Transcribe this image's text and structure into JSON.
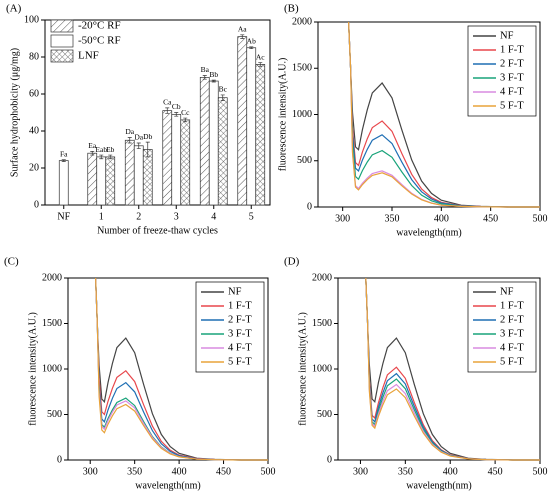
{
  "chart_data": [
    {
      "type": "bar",
      "label": "(A)",
      "ylabel": "Surface hydrophobicity (μg/mg)",
      "xlabel": "Number of freeze-thaw cycles",
      "categories": [
        "NF",
        "1",
        "2",
        "3",
        "4",
        "5"
      ],
      "ylim": [
        0,
        100
      ],
      "yticks": [
        0,
        20,
        40,
        60,
        80,
        100
      ],
      "legend": "top-left",
      "series": [
        {
          "name": "-20°C RF",
          "pattern": "hatch",
          "values": [
            null,
            28,
            35,
            51,
            69,
            91
          ],
          "errors": [
            null,
            1,
            1.5,
            1.5,
            1,
            1
          ],
          "labels": [
            null,
            "Ea",
            "Da",
            "Ca",
            "Ba",
            "Aa"
          ]
        },
        {
          "name": "-50°C RF",
          "pattern": "none",
          "values": [
            24,
            26,
            32,
            49,
            67,
            85
          ],
          "errors": [
            0.5,
            1,
            1.5,
            1,
            0.5,
            0.5
          ],
          "labels": [
            "Fa",
            "Eab",
            "Da",
            "Cb",
            "Bb",
            "Ab"
          ]
        },
        {
          "name": "LNF",
          "pattern": "crosshatch",
          "values": [
            null,
            26,
            30,
            46,
            58,
            76
          ],
          "errors": [
            null,
            1,
            4,
            1,
            1.5,
            1
          ],
          "labels": [
            null,
            "Eb",
            "Db",
            "Cc",
            "Bc",
            "Ac"
          ]
        }
      ]
    },
    {
      "type": "line",
      "label": "(B)",
      "ylabel": "fluorescence intensity(A.U.)",
      "xlabel": "wavelength(nm)",
      "xlim": [
        275,
        500
      ],
      "xticks": [
        300,
        350,
        400,
        450,
        500
      ],
      "ylim": [
        0,
        2000
      ],
      "yticks": [
        0,
        500,
        1000,
        1500,
        2000
      ],
      "legend": "top-right",
      "x": [
        306,
        308,
        310,
        313,
        316,
        320,
        325,
        330,
        340,
        350,
        360,
        370,
        380,
        390,
        400,
        420,
        440,
        470,
        500
      ],
      "series": [
        {
          "name": "NF",
          "color": "#444444",
          "values": [
            2000,
            1500,
            1020,
            650,
            620,
            836,
            1052,
            1232,
            1340,
            1179,
            831,
            509,
            281,
            147,
            74,
            20,
            7,
            0,
            0
          ]
        },
        {
          "name": "1 F-T",
          "color": "#e8474c",
          "values": [
            2000,
            1500,
            850,
            480,
            450,
            594,
            738,
            858,
            930,
            818,
            577,
            353,
            195,
            102,
            51,
            14,
            5,
            0,
            0
          ]
        },
        {
          "name": "2 F-T",
          "color": "#1f6fb4",
          "values": [
            2000,
            1500,
            790,
            420,
            390,
            507,
            624,
            722,
            780,
            686,
            484,
            296,
            164,
            86,
            43,
            12,
            4,
            0,
            0
          ]
        },
        {
          "name": "3 F-T",
          "color": "#19a37a",
          "values": [
            2000,
            1500,
            700,
            330,
            300,
            393,
            486,
            564,
            610,
            537,
            378,
            232,
            128,
            67,
            34,
            9,
            3,
            0,
            0
          ]
        },
        {
          "name": "4 F-T",
          "color": "#d98be0",
          "values": [
            2000,
            1500,
            600,
            230,
            200,
            257,
            314,
            362,
            390,
            343,
            242,
            148,
            82,
            43,
            21,
            6,
            2,
            0,
            0
          ]
        },
        {
          "name": "5 F-T",
          "color": "#e8a33a",
          "values": [
            2000,
            1500,
            585,
            215,
            185,
            241,
            296,
            342,
            370,
            326,
            229,
            141,
            78,
            41,
            20,
            6,
            2,
            0,
            0
          ]
        }
      ]
    },
    {
      "type": "line",
      "label": "(C)",
      "ylabel": "fluorescence intensity(A.U.)",
      "xlabel": "wavelength(nm)",
      "xlim": [
        275,
        500
      ],
      "xticks": [
        300,
        350,
        400,
        450,
        500
      ],
      "ylim": [
        0,
        2000
      ],
      "yticks": [
        0,
        500,
        1000,
        1500,
        2000
      ],
      "legend": "top-right",
      "x": [
        306,
        308,
        310,
        313,
        316,
        320,
        325,
        330,
        340,
        350,
        360,
        370,
        380,
        390,
        400,
        420,
        440,
        470,
        500
      ],
      "series": [
        {
          "name": "NF",
          "color": "#444444",
          "values": [
            2000,
            1500,
            1040,
            670,
            640,
            850,
            1060,
            1235,
            1340,
            1179,
            831,
            509,
            281,
            147,
            74,
            20,
            7,
            0,
            0
          ]
        },
        {
          "name": "1 F-T",
          "color": "#e8474c",
          "values": [
            2000,
            1500,
            900,
            530,
            500,
            644,
            788,
            908,
            980,
            862,
            608,
            372,
            206,
            108,
            54,
            15,
            5,
            0,
            0
          ]
        },
        {
          "name": "2 F-T",
          "color": "#1f6fb4",
          "values": [
            2000,
            1500,
            820,
            450,
            420,
            549,
            678,
            786,
            850,
            748,
            527,
            323,
            179,
            94,
            47,
            13,
            4,
            0,
            0
          ]
        },
        {
          "name": "3 F-T",
          "color": "#19a37a",
          "values": [
            2000,
            1500,
            760,
            390,
            360,
            456,
            552,
            632,
            680,
            598,
            422,
            258,
            143,
            75,
            37,
            10,
            3,
            0,
            0
          ]
        },
        {
          "name": "4 F-T",
          "color": "#d98be0",
          "values": [
            2000,
            1500,
            740,
            370,
            340,
            433,
            526,
            604,
            650,
            572,
            403,
            247,
            137,
            72,
            36,
            10,
            3,
            0,
            0
          ]
        },
        {
          "name": "5 F-T",
          "color": "#e8a33a",
          "values": [
            2000,
            1500,
            700,
            330,
            300,
            393,
            486,
            564,
            610,
            537,
            378,
            232,
            128,
            67,
            34,
            9,
            3,
            0,
            0
          ]
        }
      ]
    },
    {
      "type": "line",
      "label": "(D)",
      "ylabel": "fluorescence intensity(A.U.)",
      "xlabel": "wavelength(nm)",
      "xlim": [
        275,
        500
      ],
      "xticks": [
        300,
        350,
        400,
        450,
        500
      ],
      "ylim": [
        0,
        2000
      ],
      "yticks": [
        0,
        500,
        1000,
        1500,
        2000
      ],
      "legend": "top-right",
      "x": [
        306,
        308,
        310,
        313,
        316,
        320,
        325,
        330,
        340,
        350,
        360,
        370,
        380,
        390,
        400,
        420,
        440,
        470,
        500
      ],
      "series": [
        {
          "name": "NF",
          "color": "#444444",
          "values": [
            2000,
            1500,
            1040,
            670,
            640,
            850,
            1060,
            1235,
            1340,
            1179,
            831,
            509,
            281,
            147,
            74,
            20,
            7,
            0,
            0
          ]
        },
        {
          "name": "1 F-T",
          "color": "#e8474c",
          "values": [
            2000,
            1500,
            860,
            490,
            460,
            628,
            796,
            936,
            1020,
            898,
            632,
            388,
            214,
            112,
            56,
            15,
            5,
            0,
            0
          ]
        },
        {
          "name": "2 F-T",
          "color": "#1f6fb4",
          "values": [
            2000,
            1500,
            820,
            450,
            420,
            579,
            738,
            871,
            950,
            836,
            589,
            361,
            200,
            105,
            52,
            14,
            5,
            0,
            0
          ]
        },
        {
          "name": "3 F-T",
          "color": "#19a37a",
          "values": [
            2000,
            1500,
            790,
            420,
            390,
            540,
            690,
            815,
            890,
            783,
            552,
            338,
            187,
            98,
            49,
            13,
            4,
            0,
            0
          ]
        },
        {
          "name": "4 F-T",
          "color": "#d98be0",
          "values": [
            2000,
            1500,
            770,
            400,
            370,
            508,
            646,
            761,
            830,
            730,
            515,
            315,
            174,
            91,
            46,
            12,
            4,
            0,
            0
          ]
        },
        {
          "name": "5 F-T",
          "color": "#e8a33a",
          "values": [
            2000,
            1500,
            750,
            380,
            350,
            479,
            608,
            716,
            780,
            686,
            484,
            296,
            164,
            86,
            43,
            12,
            4,
            0,
            0
          ]
        }
      ]
    }
  ]
}
